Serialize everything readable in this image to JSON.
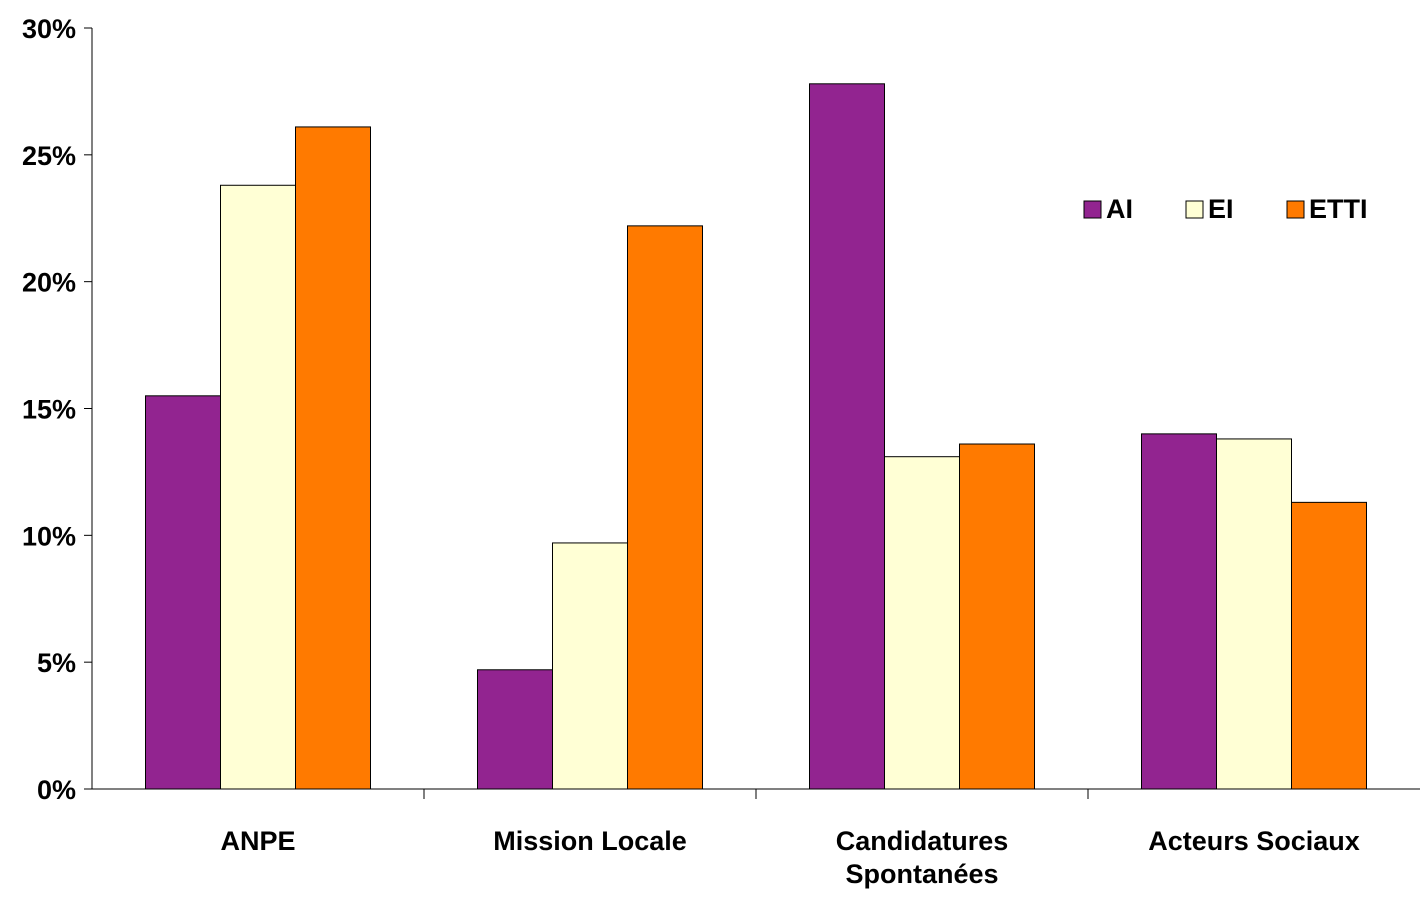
{
  "chart_data": {
    "type": "bar",
    "categories": [
      [
        "ANPE"
      ],
      [
        "Mission Locale"
      ],
      [
        "Candidatures",
        "Spontanées"
      ],
      [
        "Acteurs Sociaux"
      ]
    ],
    "series": [
      {
        "name": "AI",
        "color": "#922490",
        "values": [
          15.5,
          4.7,
          27.8,
          14.0
        ]
      },
      {
        "name": "EI",
        "color": "#FFFFD5",
        "values": [
          23.8,
          9.7,
          13.1,
          13.8
        ]
      },
      {
        "name": "ETTI",
        "color": "#FF7A00",
        "values": [
          26.1,
          22.2,
          13.6,
          11.3
        ]
      }
    ],
    "y_ticks": [
      "0%",
      "5%",
      "10%",
      "15%",
      "20%",
      "25%",
      "30%"
    ],
    "ylim": [
      0,
      30
    ],
    "y_unit": "%",
    "grid": false,
    "legend_position": "top-right"
  }
}
